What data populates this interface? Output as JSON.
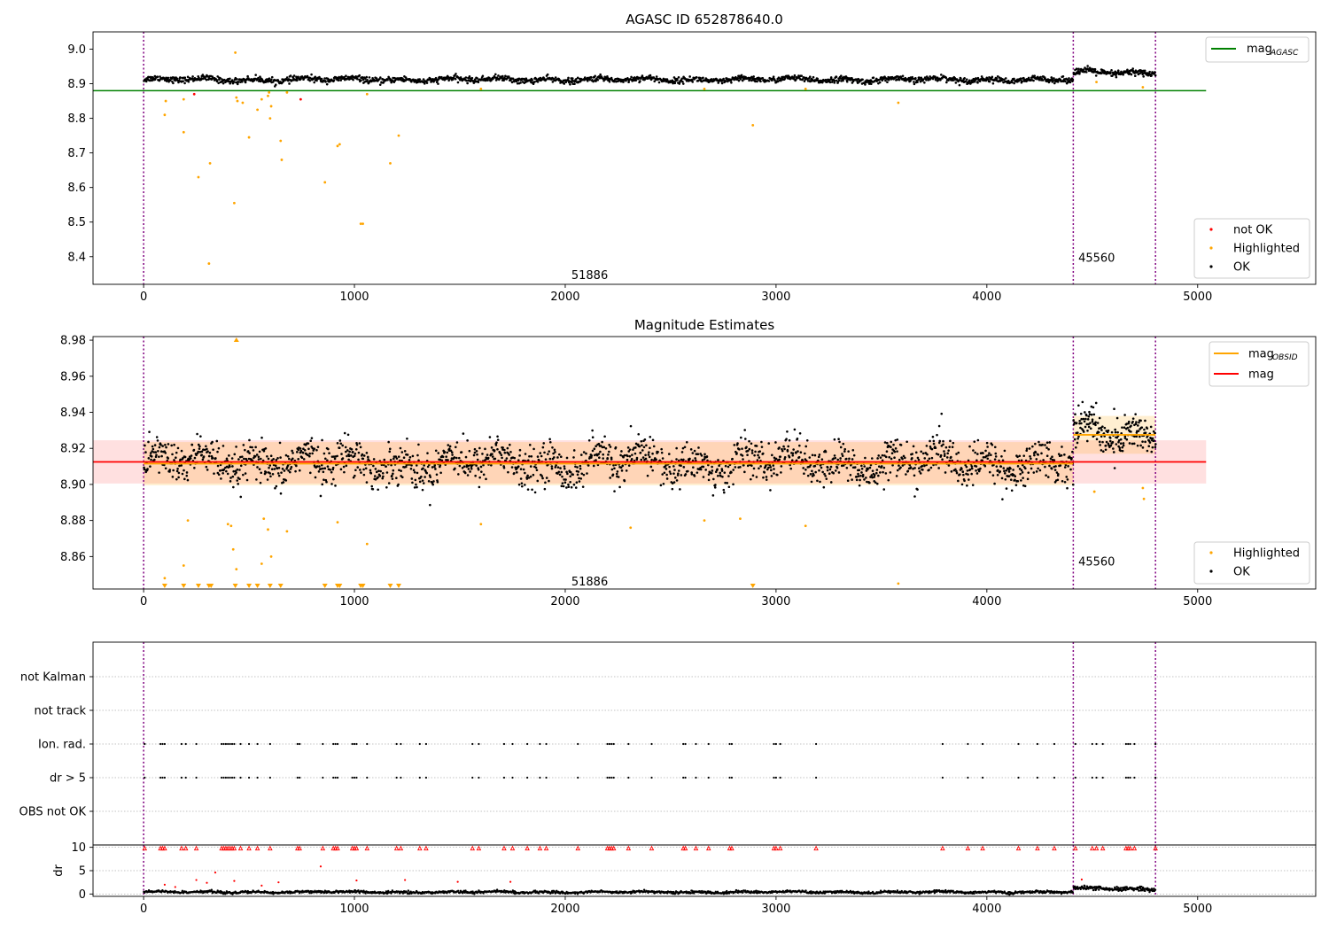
{
  "figure_title": "",
  "colors": {
    "ok": "#000000",
    "highlighted": "#ffa500",
    "not_ok": "#ff0000",
    "mag_agasc": "#008000",
    "mag_obsid": "#ffa500",
    "mag": "#ff0000",
    "obsid_boundary": "#800080",
    "grid": "#b0b0b0"
  },
  "chart_data": [
    {
      "type": "scatter",
      "title": "AGASC ID 652878640.0",
      "xlim": [
        -240,
        5560
      ],
      "ylim": [
        8.32,
        9.05
      ],
      "xticks": [
        0,
        1000,
        2000,
        3000,
        4000,
        5000
      ],
      "yticks": [
        8.4,
        8.5,
        8.6,
        8.7,
        8.8,
        8.9,
        9.0
      ],
      "ytick_labels": [
        "8.4",
        "8.5",
        "8.6",
        "8.7",
        "8.8",
        "8.9",
        "9.0"
      ],
      "obsid_boundaries": [
        0,
        4410,
        4800
      ],
      "obsid_annotations": [
        {
          "label": "51886",
          "x": 2200,
          "y": 8.345
        },
        {
          "label": "45560",
          "x": 4605,
          "y": 8.395
        }
      ],
      "lines": [
        {
          "name": "mag",
          "sub": "AGASC",
          "y": 8.88,
          "x": [
            -240,
            5040
          ],
          "color": "#008000"
        }
      ],
      "legend_lines": [
        {
          "name": "mag",
          "sub": "AGASC",
          "color": "#008000"
        }
      ],
      "legend_points": [
        {
          "name": "not OK",
          "color": "#ff0000"
        },
        {
          "name": "Highlighted",
          "color": "#ffa500"
        },
        {
          "name": "OK",
          "color": "#000000"
        }
      ],
      "ok_segments": [
        {
          "x0": 0,
          "x1": 4410,
          "y": 8.912,
          "noise": 0.007,
          "n": 1650
        },
        {
          "x0": 4410,
          "x1": 4800,
          "y": 8.932,
          "noise": 0.008,
          "n": 170
        }
      ],
      "highlighted_points": [
        {
          "x": 100,
          "y": 8.81
        },
        {
          "x": 105,
          "y": 8.85
        },
        {
          "x": 190,
          "y": 8.855
        },
        {
          "x": 190,
          "y": 8.76
        },
        {
          "x": 260,
          "y": 8.63
        },
        {
          "x": 310,
          "y": 8.38
        },
        {
          "x": 315,
          "y": 8.67
        },
        {
          "x": 430,
          "y": 8.555
        },
        {
          "x": 435,
          "y": 8.99
        },
        {
          "x": 440,
          "y": 8.86
        },
        {
          "x": 445,
          "y": 8.85
        },
        {
          "x": 470,
          "y": 8.845
        },
        {
          "x": 500,
          "y": 8.745
        },
        {
          "x": 540,
          "y": 8.825
        },
        {
          "x": 560,
          "y": 8.855
        },
        {
          "x": 590,
          "y": 8.865
        },
        {
          "x": 595,
          "y": 8.875
        },
        {
          "x": 600,
          "y": 8.8
        },
        {
          "x": 605,
          "y": 8.835
        },
        {
          "x": 650,
          "y": 8.735
        },
        {
          "x": 655,
          "y": 8.68
        },
        {
          "x": 680,
          "y": 8.875
        },
        {
          "x": 860,
          "y": 8.615
        },
        {
          "x": 920,
          "y": 8.72
        },
        {
          "x": 930,
          "y": 8.725
        },
        {
          "x": 1030,
          "y": 8.495
        },
        {
          "x": 1040,
          "y": 8.495
        },
        {
          "x": 1060,
          "y": 8.87
        },
        {
          "x": 1170,
          "y": 8.67
        },
        {
          "x": 1210,
          "y": 8.75
        },
        {
          "x": 2890,
          "y": 8.78
        },
        {
          "x": 3580,
          "y": 8.845
        },
        {
          "x": 1600,
          "y": 8.885
        },
        {
          "x": 2660,
          "y": 8.885
        },
        {
          "x": 3140,
          "y": 8.885
        },
        {
          "x": 4520,
          "y": 8.905
        },
        {
          "x": 4740,
          "y": 8.89
        }
      ],
      "not_ok_points": [
        {
          "x": 240,
          "y": 8.87
        },
        {
          "x": 745,
          "y": 8.855
        }
      ]
    },
    {
      "type": "scatter",
      "title": "Magnitude Estimates",
      "xlim": [
        -240,
        5560
      ],
      "ylim": [
        8.842,
        8.982
      ],
      "xticks": [
        0,
        1000,
        2000,
        3000,
        4000,
        5000
      ],
      "yticks": [
        8.86,
        8.88,
        8.9,
        8.92,
        8.94,
        8.96,
        8.98
      ],
      "ytick_labels": [
        "8.86",
        "8.88",
        "8.90",
        "8.92",
        "8.94",
        "8.96",
        "8.98"
      ],
      "obsid_boundaries": [
        0,
        4410,
        4800
      ],
      "obsid_annotations": [
        {
          "label": "51886",
          "x": 2200,
          "y": 8.846
        },
        {
          "label": "45560",
          "x": 4605,
          "y": 8.857
        }
      ],
      "mag_band": {
        "x": [
          -240,
          5040
        ],
        "y0": 8.9005,
        "y1": 8.9245,
        "color": "#ff0000"
      },
      "obsid_bands": [
        {
          "x": [
            0,
            4410
          ],
          "y0": 8.8995,
          "y1": 8.9235,
          "color": "#ffa500"
        },
        {
          "x": [
            4410,
            4800
          ],
          "y0": 8.917,
          "y1": 8.938,
          "color": "#ffa500"
        }
      ],
      "lines": [
        {
          "name": "mag",
          "y": 8.9125,
          "x": [
            -240,
            5040
          ],
          "color": "#ff0000"
        },
        {
          "name": "mag_obsid_1",
          "y": 8.9115,
          "x": [
            0,
            4410
          ],
          "color": "#ffa500"
        },
        {
          "name": "mag_obsid_2",
          "y": 8.9275,
          "x": [
            4410,
            4800
          ],
          "color": "#ffa500"
        }
      ],
      "legend_lines": [
        {
          "name": "mag",
          "sub": "OBSID",
          "color": "#ffa500"
        },
        {
          "name": "mag",
          "sub": "",
          "color": "#ff0000"
        }
      ],
      "legend_points": [
        {
          "name": "Highlighted",
          "color": "#ffa500"
        },
        {
          "name": "OK",
          "color": "#000000"
        }
      ],
      "ok_segments": [
        {
          "x0": 0,
          "x1": 4410,
          "y": 8.912,
          "noise": 0.009,
          "n": 1900
        },
        {
          "x0": 4410,
          "x1": 4800,
          "y": 8.928,
          "noise": 0.009,
          "n": 200
        }
      ],
      "highlighted_points": [
        {
          "x": 100,
          "y": 8.848
        },
        {
          "x": 190,
          "y": 8.855
        },
        {
          "x": 210,
          "y": 8.88
        },
        {
          "x": 400,
          "y": 8.878
        },
        {
          "x": 415,
          "y": 8.877
        },
        {
          "x": 425,
          "y": 8.864
        },
        {
          "x": 440,
          "y": 8.853
        },
        {
          "x": 560,
          "y": 8.856
        },
        {
          "x": 570,
          "y": 8.881
        },
        {
          "x": 590,
          "y": 8.875
        },
        {
          "x": 605,
          "y": 8.86
        },
        {
          "x": 680,
          "y": 8.874
        },
        {
          "x": 920,
          "y": 8.879
        },
        {
          "x": 1060,
          "y": 8.867
        },
        {
          "x": 1600,
          "y": 8.878
        },
        {
          "x": 2310,
          "y": 8.876
        },
        {
          "x": 2660,
          "y": 8.88
        },
        {
          "x": 2830,
          "y": 8.881
        },
        {
          "x": 3140,
          "y": 8.877
        },
        {
          "x": 3580,
          "y": 8.845
        },
        {
          "x": 4510,
          "y": 8.896
        },
        {
          "x": 4740,
          "y": 8.898
        },
        {
          "x": 4745,
          "y": 8.892
        }
      ],
      "clipped_low_markers": [
        100,
        190,
        260,
        310,
        320,
        435,
        500,
        540,
        600,
        650,
        860,
        920,
        930,
        1030,
        1040,
        1170,
        1210,
        2890
      ],
      "clipped_high_markers": [
        440
      ]
    },
    {
      "type": "scatter",
      "title": "",
      "xlim": [
        -240,
        5560
      ],
      "categories": [
        "not Kalman",
        "not track",
        "Ion. rad.",
        "dr > 5",
        "OBS not OK"
      ],
      "obsid_boundaries": [
        0,
        4410,
        4800
      ],
      "flag_rows": {
        "Ion. rad.": [
          5,
          80,
          90,
          100,
          180,
          200,
          250,
          370,
          380,
          390,
          400,
          410,
          420,
          430,
          460,
          500,
          540,
          600,
          730,
          740,
          850,
          900,
          910,
          920,
          990,
          1000,
          1010,
          1060,
          1200,
          1220,
          1310,
          1340,
          1560,
          1590,
          1710,
          1750,
          1820,
          1880,
          1910,
          2060,
          2200,
          2210,
          2220,
          2230,
          2300,
          2410,
          2560,
          2570,
          2620,
          2680,
          2780,
          2790,
          2990,
          3000,
          3020,
          3190,
          3790,
          3910,
          3980,
          4150,
          4240,
          4320,
          4420,
          4500,
          4520,
          4550,
          4660,
          4670,
          4680,
          4700,
          4800
        ],
        "dr > 5": [
          5,
          80,
          90,
          100,
          180,
          200,
          250,
          370,
          380,
          390,
          400,
          410,
          420,
          430,
          460,
          500,
          540,
          600,
          730,
          740,
          850,
          900,
          910,
          920,
          990,
          1000,
          1010,
          1060,
          1200,
          1220,
          1310,
          1340,
          1560,
          1590,
          1710,
          1750,
          1820,
          1880,
          1910,
          2060,
          2200,
          2210,
          2220,
          2230,
          2300,
          2410,
          2560,
          2570,
          2620,
          2680,
          2780,
          2790,
          2990,
          3000,
          3020,
          3190,
          3790,
          3910,
          3980,
          4150,
          4240,
          4320,
          4420,
          4500,
          4520,
          4550,
          4660,
          4670,
          4680,
          4700,
          4800
        ]
      }
    },
    {
      "type": "scatter",
      "title": "",
      "ylabel": "dr",
      "xlim": [
        -240,
        5560
      ],
      "ylim": [
        -0.5,
        10.5
      ],
      "xticks": [
        0,
        1000,
        2000,
        3000,
        4000,
        5000
      ],
      "yticks": [
        0,
        5,
        10
      ],
      "ytick_labels": [
        "0",
        "5",
        "10"
      ],
      "obsid_boundaries": [
        0,
        4410,
        4800
      ],
      "ok_segments": [
        {
          "x0": 0,
          "x1": 4410,
          "y": 0.4,
          "noise": 0.22,
          "n": 1500
        },
        {
          "x0": 4410,
          "x1": 4800,
          "y": 1.1,
          "noise": 0.35,
          "n": 180
        }
      ],
      "outlier_points": [
        {
          "x": 100,
          "y": 2.0
        },
        {
          "x": 150,
          "y": 1.5
        },
        {
          "x": 250,
          "y": 3.0
        },
        {
          "x": 300,
          "y": 2.4
        },
        {
          "x": 340,
          "y": 4.6
        },
        {
          "x": 430,
          "y": 2.8
        },
        {
          "x": 560,
          "y": 1.8
        },
        {
          "x": 640,
          "y": 2.5
        },
        {
          "x": 840,
          "y": 5.9
        },
        {
          "x": 1010,
          "y": 2.9
        },
        {
          "x": 1240,
          "y": 3.0
        },
        {
          "x": 1490,
          "y": 2.6
        },
        {
          "x": 1740,
          "y": 2.6
        },
        {
          "x": 4450,
          "y": 3.1
        }
      ],
      "red_markers_y": 9.8,
      "red_markers_x": [
        5,
        80,
        90,
        100,
        180,
        200,
        250,
        370,
        380,
        390,
        400,
        410,
        420,
        430,
        460,
        500,
        540,
        600,
        730,
        740,
        850,
        900,
        910,
        920,
        990,
        1000,
        1010,
        1060,
        1200,
        1220,
        1310,
        1340,
        1560,
        1590,
        1710,
        1750,
        1820,
        1880,
        1910,
        2060,
        2200,
        2210,
        2220,
        2230,
        2300,
        2410,
        2560,
        2570,
        2620,
        2680,
        2780,
        2790,
        2990,
        3000,
        3020,
        3190,
        3790,
        3910,
        3980,
        4150,
        4240,
        4320,
        4420,
        4500,
        4520,
        4550,
        4660,
        4670,
        4680,
        4700,
        4800
      ]
    }
  ]
}
